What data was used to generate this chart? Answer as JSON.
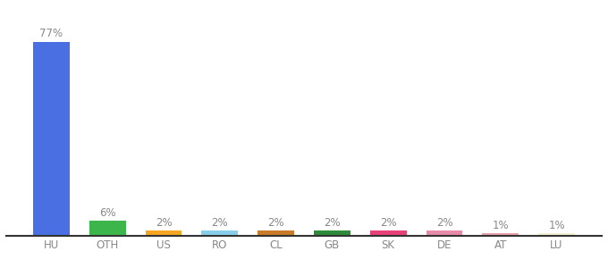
{
  "categories": [
    "HU",
    "OTH",
    "US",
    "RO",
    "CL",
    "GB",
    "SK",
    "DE",
    "AT",
    "LU"
  ],
  "values": [
    77,
    6,
    2,
    2,
    2,
    2,
    2,
    2,
    1,
    1
  ],
  "bar_colors": [
    "#4A6FE3",
    "#3CB54A",
    "#F5A623",
    "#87CEEB",
    "#C97A2A",
    "#2E8B3A",
    "#E8417A",
    "#E88AAA",
    "#E8A0AA",
    "#F5F0D0"
  ],
  "label_fontsize": 8.5,
  "value_fontsize": 8.5,
  "value_color": "#888888",
  "label_color": "#888888",
  "background_color": "#ffffff",
  "ylim": [
    0,
    85
  ],
  "bar_width": 0.65
}
